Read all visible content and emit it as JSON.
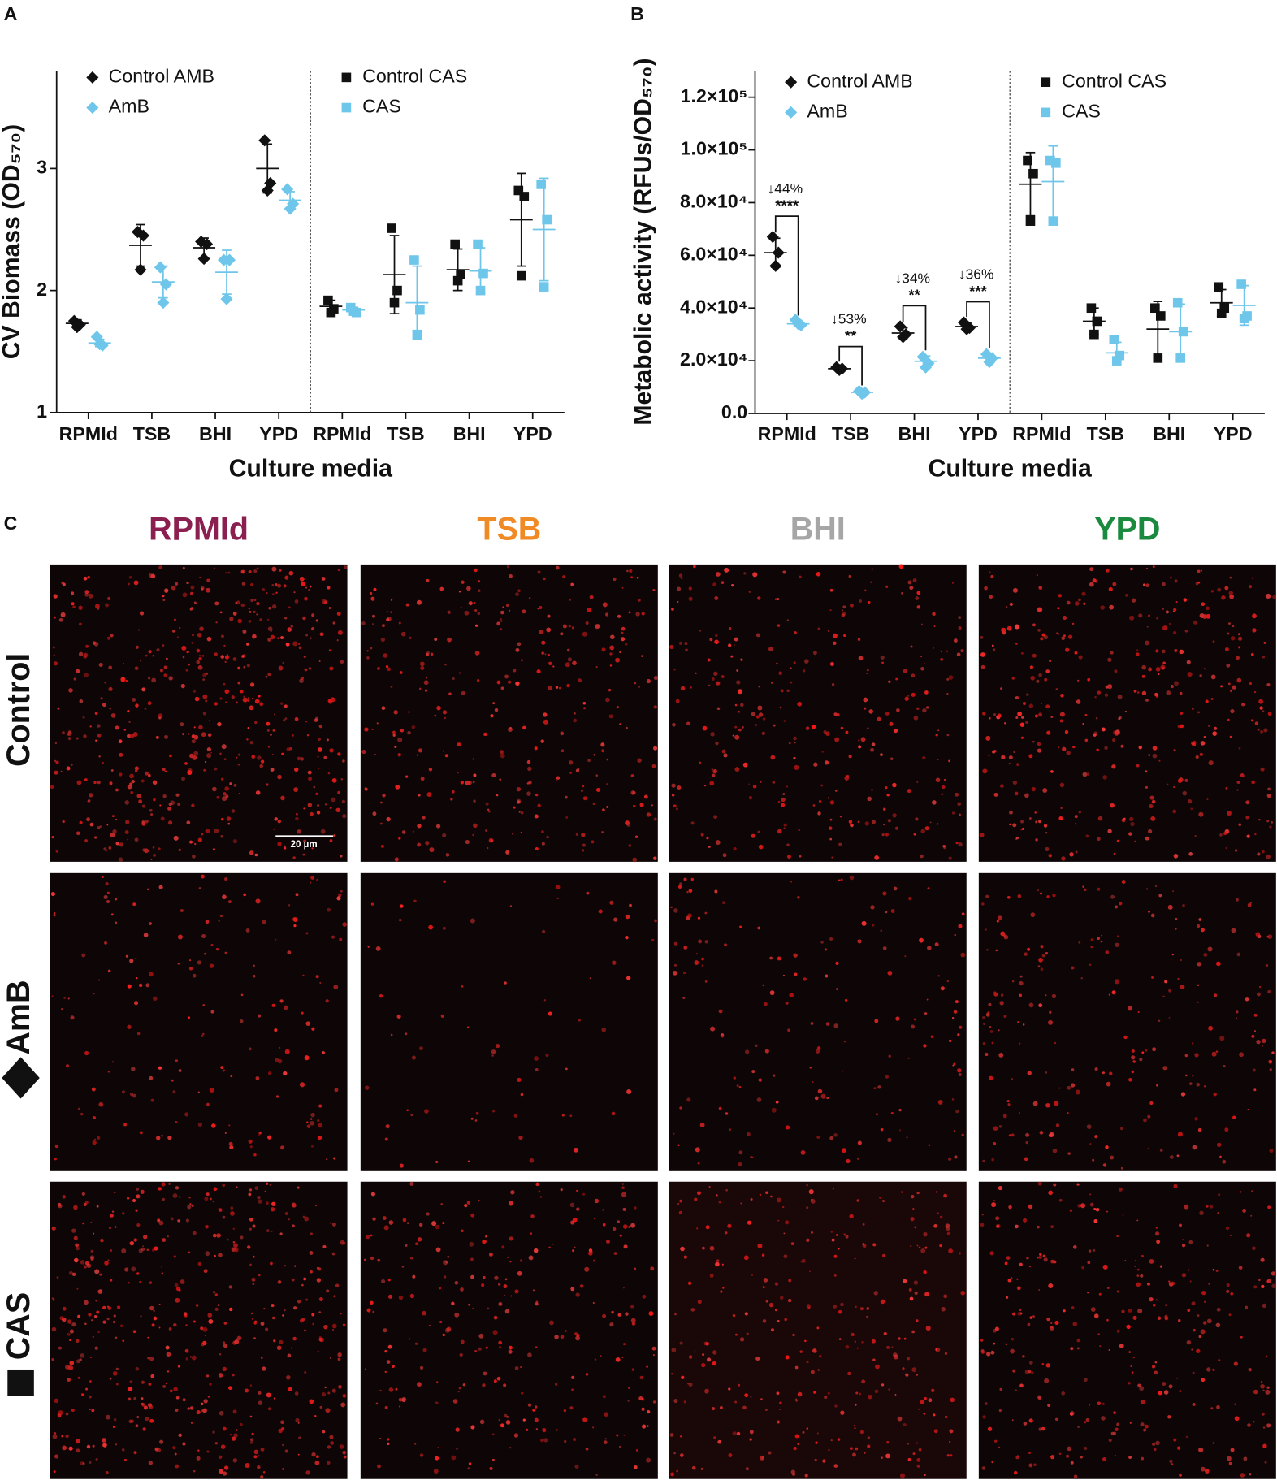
{
  "panel_labels": [
    "A",
    "B",
    "C"
  ],
  "chart_data": [
    {
      "type": "scatter",
      "y_label": "CV Biomass (OD₅₇₀)",
      "x_label": "Culture media",
      "ylim": [
        1,
        3.8
      ],
      "yticks": [
        1,
        2,
        3
      ],
      "groups": [
        {
          "categories": [
            "RPMId",
            "TSB",
            "BHI",
            "YPD"
          ],
          "series": [
            {
              "name": "Control AMB",
              "color": "#111111",
              "marker": "diamond",
              "points": [
                [
                  1.75,
                  1.72,
                  1.7
                ],
                [
                  2.48,
                  2.45,
                  2.17
                ],
                [
                  2.4,
                  2.38,
                  2.26
                ],
                [
                  3.23,
                  2.88,
                  2.82
                ]
              ],
              "mean": [
                1.73,
                2.37,
                2.35,
                3.0
              ],
              "sd": [
                0.03,
                0.17,
                0.08,
                0.2
              ]
            },
            {
              "name": "AmB",
              "color": "#6ec6ea",
              "marker": "diamond",
              "points": [
                [
                  1.62,
                  1.55,
                  1.56
                ],
                [
                  2.19,
                  2.05,
                  1.9
                ],
                [
                  2.25,
                  2.25,
                  1.93
                ],
                [
                  2.83,
                  2.71,
                  2.67
                ]
              ],
              "mean": [
                1.57,
                2.07,
                2.15,
                2.74
              ],
              "sd": [
                0.03,
                0.13,
                0.18,
                0.07
              ]
            }
          ]
        },
        {
          "categories": [
            "RPMId",
            "TSB",
            "BHI",
            "YPD"
          ],
          "series": [
            {
              "name": "Control CAS",
              "color": "#111111",
              "marker": "square",
              "points": [
                [
                  1.92,
                  1.85,
                  1.82
                ],
                [
                  2.51,
                  2.0,
                  1.9
                ],
                [
                  2.38,
                  2.13,
                  2.08
                ],
                [
                  2.82,
                  2.77,
                  2.12
                ]
              ],
              "mean": [
                1.87,
                2.13,
                2.17,
                2.58
              ],
              "sd": [
                0.05,
                0.32,
                0.17,
                0.38
              ]
            },
            {
              "name": "CAS",
              "color": "#6ec6ea",
              "marker": "square",
              "points": [
                [
                  1.86,
                  1.82,
                  1.83
                ],
                [
                  2.25,
                  1.84,
                  1.64
                ],
                [
                  2.38,
                  2.14,
                  2.0
                ],
                [
                  2.87,
                  2.58,
                  2.03
                ]
              ],
              "mean": [
                1.84,
                1.9,
                2.16,
                2.5
              ],
              "sd": [
                0.02,
                0.3,
                0.19,
                0.42
              ]
            }
          ]
        }
      ]
    },
    {
      "type": "scatter",
      "y_label": "Metabolic activity (RFUs/OD₅₇₀)",
      "x_label": "Culture media",
      "ylim": [
        0,
        130000
      ],
      "yticks": [
        {
          "value": 0,
          "label": "0.0"
        },
        {
          "value": 20000,
          "label": "2.0×10⁴"
        },
        {
          "value": 40000,
          "label": "4.0×10⁴"
        },
        {
          "value": 60000,
          "label": "6.0×10⁴"
        },
        {
          "value": 80000,
          "label": "8.0×10⁴"
        },
        {
          "value": 100000,
          "label": "1.0×10⁵"
        },
        {
          "value": 120000,
          "label": "1.2×10⁵"
        }
      ],
      "groups": [
        {
          "categories": [
            "RPMId",
            "TSB",
            "BHI",
            "YPD"
          ],
          "annotations": [
            {
              "text": "↓44%",
              "stars": "****"
            },
            {
              "text": "↓53%",
              "stars": "**"
            },
            {
              "text": "↓34%",
              "stars": "**"
            },
            {
              "text": "↓36%",
              "stars": "***"
            }
          ],
          "series": [
            {
              "name": "Control AMB",
              "color": "#111111",
              "marker": "diamond",
              "points": [
                [
                  67000,
                  61000,
                  56000
                ],
                [
                  17500,
                  17000,
                  16500
                ],
                [
                  33000,
                  30000,
                  29000
                ],
                [
                  34500,
                  32500,
                  32000
                ]
              ],
              "mean": [
                61000,
                17000,
                30500,
                33000
              ],
              "sd": [
                5500,
                500,
                2000,
                1500
              ]
            },
            {
              "name": "AmB",
              "color": "#6ec6ea",
              "marker": "diamond",
              "points": [
                [
                  35500,
                  33500,
                  34000
                ],
                [
                  8500,
                  8000,
                  7500
                ],
                [
                  21500,
                  19000,
                  17500
                ],
                [
                  22500,
                  21000,
                  19500
                ]
              ],
              "mean": [
                34000,
                8000,
                19800,
                21000
              ],
              "sd": [
                1000,
                500,
                2000,
                1500
              ]
            }
          ]
        },
        {
          "categories": [
            "RPMId",
            "TSB",
            "BHI",
            "YPD"
          ],
          "series": [
            {
              "name": "Control CAS",
              "color": "#111111",
              "marker": "square",
              "points": [
                [
                  96000,
                  91000,
                  73000
                ],
                [
                  40000,
                  35000,
                  30000
                ],
                [
                  40000,
                  37000,
                  21000
                ],
                [
                  48000,
                  40000,
                  38000
                ]
              ],
              "mean": [
                87000,
                35000,
                32000,
                42000
              ],
              "sd": [
                12000,
                5000,
                10500,
                5000
              ]
            },
            {
              "name": "CAS",
              "color": "#6ec6ea",
              "marker": "square",
              "points": [
                [
                  96000,
                  95000,
                  73000
                ],
                [
                  28000,
                  22000,
                  20000
                ],
                [
                  42000,
                  31000,
                  21000
                ],
                [
                  49000,
                  37000,
                  36000
                ]
              ],
              "mean": [
                88000,
                23000,
                31000,
                41000
              ],
              "sd": [
                13500,
                4000,
                10500,
                7500
              ]
            }
          ]
        }
      ]
    }
  ],
  "micrographs": {
    "columns": [
      {
        "label": "RPMId",
        "color": "#8b1f4f"
      },
      {
        "label": "TSB",
        "color": "#f08a24"
      },
      {
        "label": "BHI",
        "color": "#a6a6a6"
      },
      {
        "label": "YPD",
        "color": "#1a8a3e"
      }
    ],
    "rows": [
      "Control",
      "AmB",
      "CAS"
    ],
    "scale_bar": "20 µm"
  }
}
